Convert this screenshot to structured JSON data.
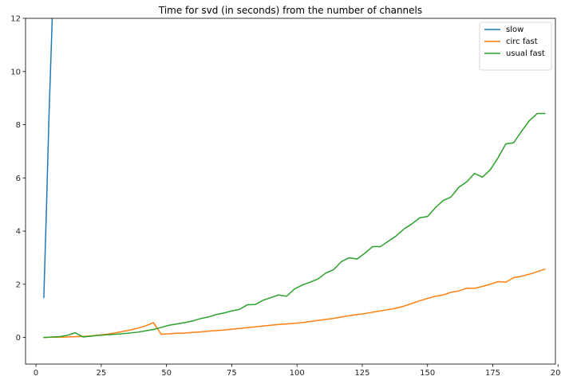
{
  "chart_data": {
    "type": "line",
    "title": "Time for svd (in seconds) from the number of channels",
    "xlabel": "",
    "ylabel": "",
    "xlim": [
      -4,
      199
    ],
    "ylim": [
      -1,
      12
    ],
    "xticks": [
      0,
      25,
      50,
      75,
      100,
      125,
      150,
      175,
      200
    ],
    "yticks": [
      0,
      2,
      4,
      6,
      8,
      10,
      12
    ],
    "grid": false,
    "legend_position": "top-right",
    "series": [
      {
        "name": "slow",
        "color": "#1f77b4",
        "x": [
          3,
          4,
          5,
          6,
          7
        ],
        "y": [
          1.5,
          4.8,
          8.4,
          11.3,
          14.5
        ]
      },
      {
        "name": "circ fast",
        "color": "#ff7f0e",
        "x": [
          3,
          6,
          9,
          12,
          15,
          18,
          21,
          24,
          27,
          30,
          33,
          36,
          39,
          42,
          45,
          48,
          51,
          54,
          57,
          60,
          63,
          66,
          69,
          72,
          75,
          78,
          81,
          84,
          87,
          90,
          93,
          96,
          99,
          102,
          105,
          108,
          111,
          114,
          117,
          120,
          123,
          126,
          129,
          132,
          135,
          138,
          141,
          144,
          147,
          150,
          153,
          156,
          159,
          162,
          165,
          168,
          171,
          174,
          177,
          180,
          183,
          186,
          189,
          192,
          195
        ],
        "y": [
          0.0,
          0.01,
          0.01,
          0.02,
          0.03,
          0.04,
          0.06,
          0.09,
          0.12,
          0.17,
          0.22,
          0.28,
          0.35,
          0.44,
          0.56,
          0.12,
          0.14,
          0.16,
          0.17,
          0.19,
          0.21,
          0.24,
          0.26,
          0.28,
          0.31,
          0.34,
          0.37,
          0.4,
          0.43,
          0.46,
          0.49,
          0.51,
          0.53,
          0.56,
          0.6,
          0.64,
          0.68,
          0.72,
          0.77,
          0.82,
          0.86,
          0.9,
          0.95,
          1.0,
          1.05,
          1.1,
          1.18,
          1.28,
          1.38,
          1.47,
          1.55,
          1.6,
          1.7,
          1.75,
          1.85,
          1.85,
          1.92,
          2.0,
          2.1,
          2.08,
          2.25,
          2.3,
          2.38,
          2.47,
          2.57
        ]
      },
      {
        "name": "usual fast",
        "color": "#2ca02c",
        "x": [
          3,
          6,
          9,
          12,
          15,
          18,
          21,
          24,
          27,
          30,
          33,
          36,
          39,
          42,
          45,
          48,
          51,
          54,
          57,
          60,
          63,
          66,
          69,
          72,
          75,
          78,
          81,
          84,
          87,
          90,
          93,
          96,
          99,
          102,
          105,
          108,
          111,
          114,
          117,
          120,
          123,
          126,
          129,
          132,
          135,
          138,
          141,
          144,
          147,
          150,
          153,
          156,
          159,
          162,
          165,
          168,
          171,
          174,
          177,
          180,
          183,
          186,
          189,
          192,
          195
        ],
        "y": [
          0.0,
          0.02,
          0.03,
          0.08,
          0.18,
          0.02,
          0.05,
          0.08,
          0.1,
          0.12,
          0.14,
          0.17,
          0.2,
          0.25,
          0.3,
          0.38,
          0.46,
          0.51,
          0.56,
          0.62,
          0.71,
          0.77,
          0.86,
          0.92,
          1.0,
          1.06,
          1.23,
          1.24,
          1.4,
          1.5,
          1.6,
          1.55,
          1.82,
          1.97,
          2.08,
          2.2,
          2.42,
          2.55,
          2.85,
          3.0,
          2.95,
          3.17,
          3.42,
          3.42,
          3.62,
          3.82,
          4.08,
          4.27,
          4.5,
          4.55,
          4.88,
          5.15,
          5.28,
          5.65,
          5.85,
          6.17,
          6.03,
          6.3,
          6.75,
          7.28,
          7.32,
          7.75,
          8.15,
          8.42,
          8.42
        ]
      }
    ]
  }
}
